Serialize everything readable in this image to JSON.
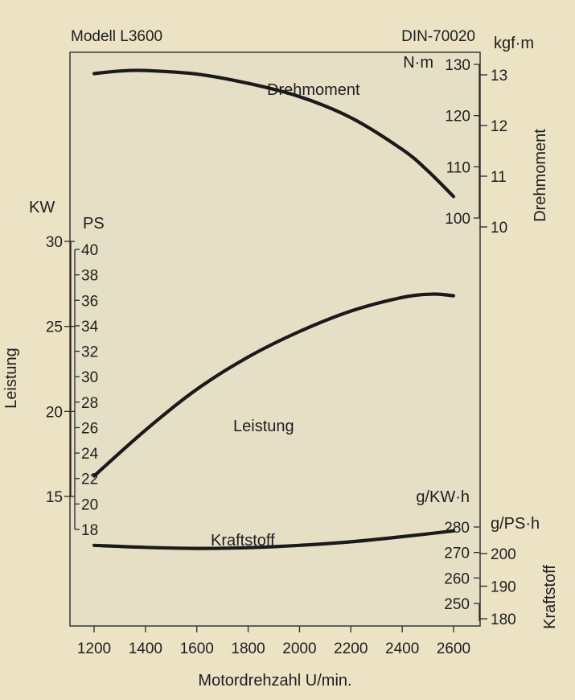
{
  "chart_data": {
    "type": "line",
    "title_left": "Modell L3600",
    "title_right": "DIN-70020",
    "x": [
      1200,
      1400,
      1600,
      1800,
      2000,
      2200,
      2400,
      2600
    ],
    "xlabel": "Motordrehzahl U/min.",
    "xlim": [
      1200,
      2600
    ],
    "xticks": [
      "1200",
      "1400",
      "1600",
      "1800",
      "2000",
      "2200",
      "2400",
      "2600"
    ],
    "series": [
      {
        "name": "Drehmoment",
        "unit": "N·m",
        "color": "#1a1a1a",
        "points": [
          [
            1200,
            128.2
          ],
          [
            1300,
            128.7
          ],
          [
            1400,
            128.8
          ],
          [
            1600,
            128.1
          ],
          [
            1800,
            126.3
          ],
          [
            2000,
            123.7
          ],
          [
            2200,
            119.6
          ],
          [
            2400,
            113.4
          ],
          [
            2500,
            109.2
          ],
          [
            2600,
            104.2
          ]
        ]
      },
      {
        "name": "Leistung",
        "unit": "KW",
        "color": "#1a1a1a",
        "points": [
          [
            1200,
            16.2
          ],
          [
            1400,
            18.9
          ],
          [
            1600,
            21.3
          ],
          [
            1800,
            23.2
          ],
          [
            2000,
            24.7
          ],
          [
            2200,
            25.9
          ],
          [
            2400,
            26.7
          ],
          [
            2520,
            26.9
          ],
          [
            2600,
            26.8
          ]
        ]
      },
      {
        "name": "Kraftstoff",
        "unit": "g/KW·h",
        "color": "#1a1a1a",
        "points": [
          [
            1200,
            272.8
          ],
          [
            1400,
            272.0
          ],
          [
            1600,
            271.6
          ],
          [
            1800,
            271.9
          ],
          [
            2000,
            272.8
          ],
          [
            2200,
            274.2
          ],
          [
            2400,
            276.2
          ],
          [
            2600,
            278.5
          ]
        ]
      }
    ],
    "axes": {
      "kw": {
        "unit": "KW",
        "ticks": [
          "15",
          "20",
          "25",
          "30"
        ]
      },
      "ps": {
        "unit": "PS",
        "ticks": [
          "18",
          "20",
          "22",
          "24",
          "26",
          "28",
          "30",
          "32",
          "34",
          "36",
          "38",
          "40"
        ]
      },
      "leistung_title": "Leistung",
      "nm": {
        "unit": "N·m",
        "ticks": [
          "100",
          "110",
          "120",
          "130"
        ]
      },
      "kgfm": {
        "unit": "kgf·m",
        "ticks": [
          "10",
          "11",
          "12",
          "13"
        ]
      },
      "drehmoment_title": "Drehmoment",
      "gkwh": {
        "unit": "g/KW·h",
        "ticks": [
          "250",
          "260",
          "270",
          "280"
        ]
      },
      "gpsh": {
        "unit": "g/PS·h",
        "ticks": [
          "180",
          "190",
          "200"
        ]
      },
      "kraftstoff_title": "Kraftstoff"
    },
    "grid": false,
    "background": "#ece2c4",
    "plot_background": "#e5e0c5"
  }
}
